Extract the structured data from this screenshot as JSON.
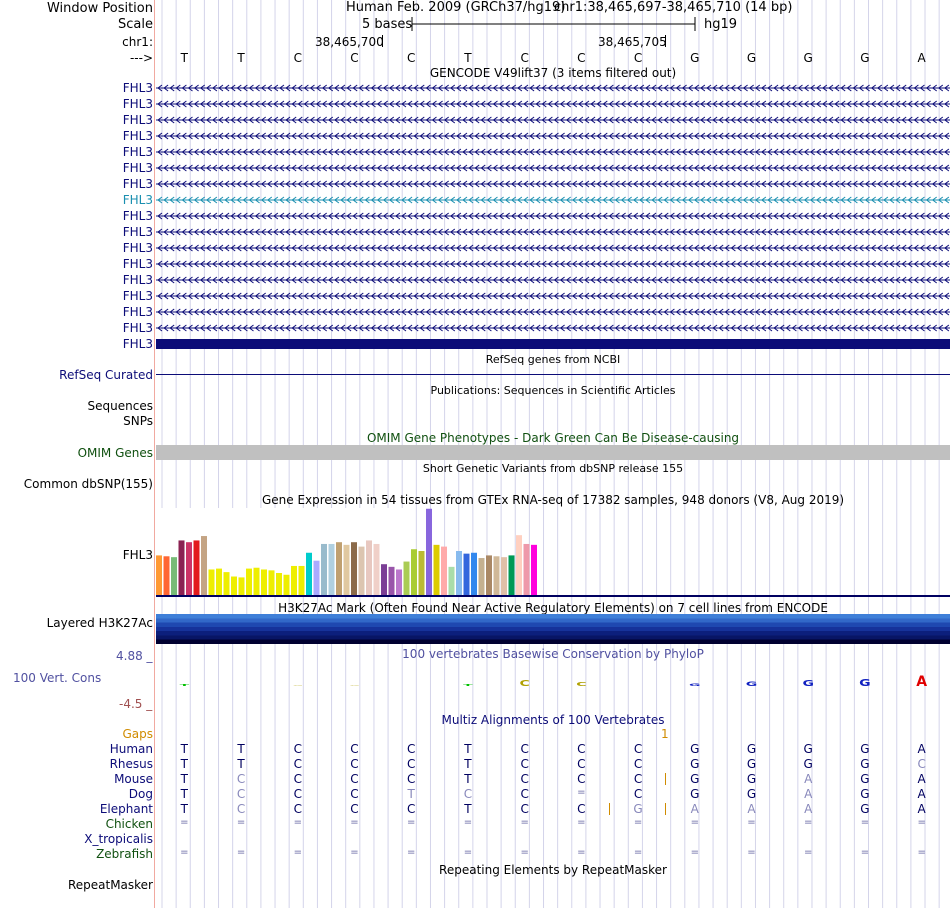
{
  "header": {
    "window_position_label": "Window Position",
    "scale_label": "Scale",
    "chr_label": "chr1:",
    "strand_label": "--->",
    "assembly_text": "Human Feb. 2009 (GRCh37/hg19)",
    "position_text": "chr1:38,465,697-38,465,710 (14 bp)",
    "scale_text": "5 bases",
    "db_text": "hg19",
    "coord_left": "38,465,700",
    "coord_right": "38,465,705"
  },
  "sequence": [
    "T",
    "T",
    "C",
    "C",
    "C",
    "T",
    "C",
    "C",
    "C",
    "G",
    "G",
    "G",
    "G",
    "A"
  ],
  "gencode": {
    "title": "GENCODE V49lift37 (3 items filtered out)",
    "gene_name": "FHL3",
    "row_count": 17,
    "highlight_row": 7,
    "colors": {
      "normal": "#0c0c78",
      "highlight": "#1a8fb0"
    }
  },
  "refseq": {
    "title": "RefSeq genes from NCBI",
    "label": "RefSeq Curated",
    "color": "#0c0c78"
  },
  "publications": {
    "title": "Publications: Sequences in Scientific Articles",
    "labels": [
      "Sequences",
      "SNPs"
    ]
  },
  "omim": {
    "title": "OMIM Gene Phenotypes - Dark Green Can Be Disease-causing",
    "label": "OMIM Genes",
    "color": "#105010",
    "bar_color": "#c0c0c0"
  },
  "dbsnp": {
    "title": "Short Genetic Variants from dbSNP release 155",
    "label": "Common dbSNP(155)"
  },
  "gtex": {
    "title": "Gene Expression in 54 tissues from GTEx RNA-seq of 17382 samples, 948 donors (V8, Aug 2019)",
    "gene_label": "FHL3",
    "bars": [
      {
        "v": 0.45,
        "c": "#ff9933"
      },
      {
        "v": 0.44,
        "c": "#ff6633"
      },
      {
        "v": 0.43,
        "c": "#77bb77"
      },
      {
        "v": 0.62,
        "c": "#8b2252"
      },
      {
        "v": 0.6,
        "c": "#cc3366"
      },
      {
        "v": 0.62,
        "c": "#e31a1c"
      },
      {
        "v": 0.67,
        "c": "#c4a484"
      },
      {
        "v": 0.29,
        "c": "#eeee00"
      },
      {
        "v": 0.3,
        "c": "#eeee00"
      },
      {
        "v": 0.26,
        "c": "#eeee00"
      },
      {
        "v": 0.21,
        "c": "#eeee00"
      },
      {
        "v": 0.2,
        "c": "#eeee00"
      },
      {
        "v": 0.3,
        "c": "#eeee00"
      },
      {
        "v": 0.31,
        "c": "#eeee00"
      },
      {
        "v": 0.29,
        "c": "#eeee00"
      },
      {
        "v": 0.28,
        "c": "#eeee00"
      },
      {
        "v": 0.25,
        "c": "#eeee00"
      },
      {
        "v": 0.23,
        "c": "#eeee00"
      },
      {
        "v": 0.33,
        "c": "#eeee00"
      },
      {
        "v": 0.33,
        "c": "#eeee00"
      },
      {
        "v": 0.48,
        "c": "#00cccc"
      },
      {
        "v": 0.39,
        "c": "#aaaaff"
      },
      {
        "v": 0.58,
        "c": "#99bbcc"
      },
      {
        "v": 0.58,
        "c": "#b0d0e0"
      },
      {
        "v": 0.6,
        "c": "#c0a070"
      },
      {
        "v": 0.57,
        "c": "#e0c8a0"
      },
      {
        "v": 0.6,
        "c": "#8b6a4a"
      },
      {
        "v": 0.55,
        "c": "#dcc5b0"
      },
      {
        "v": 0.62,
        "c": "#e8c8c0"
      },
      {
        "v": 0.58,
        "c": "#f0d0c8"
      },
      {
        "v": 0.35,
        "c": "#7b3f96"
      },
      {
        "v": 0.32,
        "c": "#9955aa"
      },
      {
        "v": 0.29,
        "c": "#bb77cc"
      },
      {
        "v": 0.38,
        "c": "#aacc55"
      },
      {
        "v": 0.52,
        "c": "#aacc33"
      },
      {
        "v": 0.5,
        "c": "#bbbb33"
      },
      {
        "v": 0.98,
        "c": "#8866dd"
      },
      {
        "v": 0.57,
        "c": "#ddcc00"
      },
      {
        "v": 0.55,
        "c": "#ffaaaa"
      },
      {
        "v": 0.32,
        "c": "#aaddaa"
      },
      {
        "v": 0.5,
        "c": "#88bbee"
      },
      {
        "v": 0.47,
        "c": "#3366dd"
      },
      {
        "v": 0.48,
        "c": "#3388ee"
      },
      {
        "v": 0.42,
        "c": "#c4b090"
      },
      {
        "v": 0.45,
        "c": "#aa8866"
      },
      {
        "v": 0.44,
        "c": "#d0b898"
      },
      {
        "v": 0.43,
        "c": "#e0c0a8"
      },
      {
        "v": 0.45,
        "c": "#009955"
      },
      {
        "v": 0.68,
        "c": "#ffd0c0"
      },
      {
        "v": 0.58,
        "c": "#ee99aa"
      },
      {
        "v": 0.57,
        "c": "#ff00dd"
      }
    ]
  },
  "h3k27ac": {
    "title": "H3K27Ac Mark (Often Found Near Active Regulatory Elements) on 7 cell lines from ENCODE",
    "label": "Layered H3K27Ac",
    "colors": [
      "#3f7fd8",
      "#3268c8",
      "#1f48b0",
      "#16329a",
      "#0c1f7c",
      "#081565",
      "#000030"
    ]
  },
  "phylop": {
    "title": "100 vertebrates Basewise Conservation by PhyloP",
    "label": "100 Vert. Cons",
    "max_label": "4.88 _",
    "min_label": "-4.5 _",
    "color": "#5050a0",
    "min_color": "#a05050"
  },
  "multiz": {
    "title": "Multiz Alignments of 100 Vertebrates",
    "gaps_label": "Gaps",
    "gaps_color": "#d08c00",
    "gap_marker": "1",
    "species": [
      {
        "name": "Human",
        "bases": "TTCCCTCCCGGGGA"
      },
      {
        "name": "Rhesus",
        "bases": "TTCCCTCCCGGGGC"
      },
      {
        "name": "Mouse",
        "bases": "TCCCCTCCCGGAGA"
      },
      {
        "name": "Dog",
        "bases": "TCCCTCC=CGGAGA"
      },
      {
        "name": "Elephant",
        "bases": "TCCCCTCCGAAAGA"
      },
      {
        "name": "Chicken",
        "bases": "=============="
      },
      {
        "name": "X_tropicalis",
        "bases": ""
      },
      {
        "name": "Zebrafish",
        "bases": "=============="
      }
    ]
  },
  "repeatmasker": {
    "title": "Repeating Elements by RepeatMasker",
    "label": "RepeatMasker"
  }
}
